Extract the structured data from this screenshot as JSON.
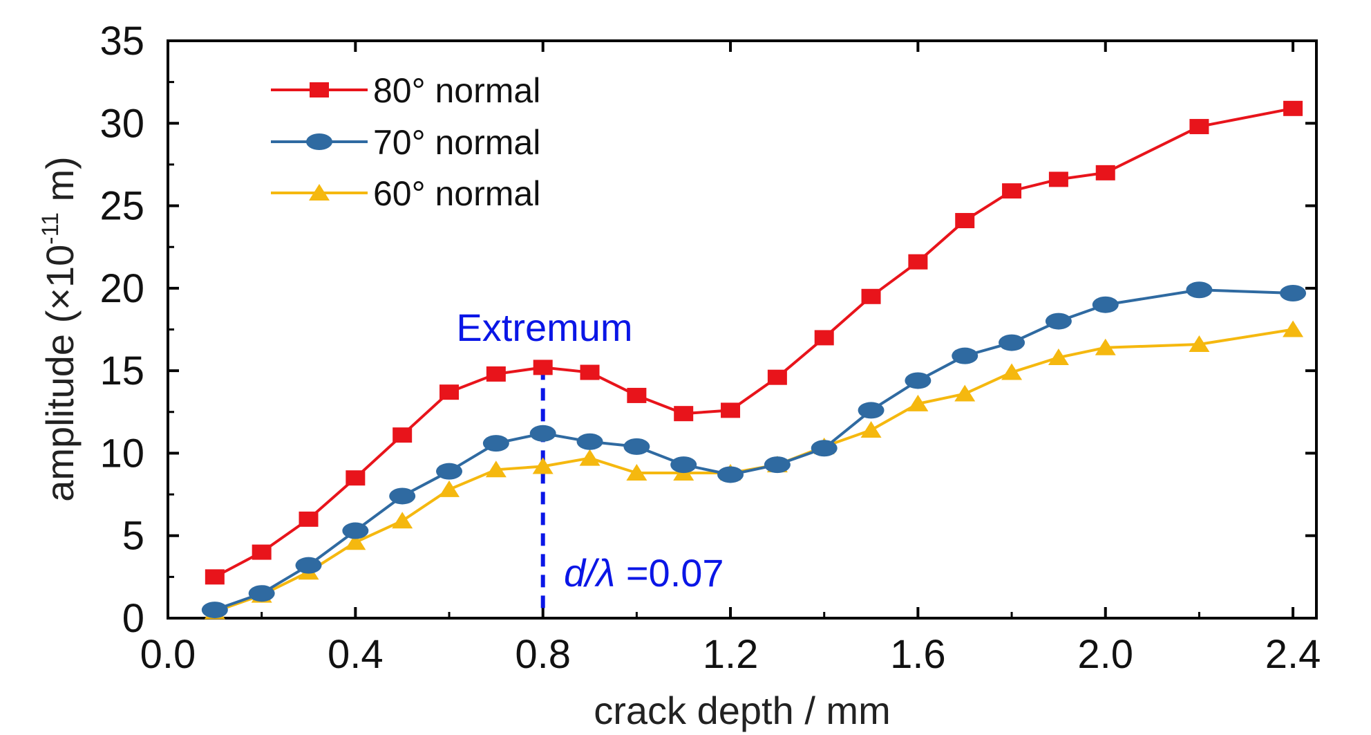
{
  "chart_data": {
    "type": "line",
    "xlabel": "crack depth / mm",
    "ylabel_prefix": "amplitude (×10",
    "ylabel_exponent": "-11",
    "ylabel_suffix": " m)",
    "xlim": [
      0.0,
      2.45
    ],
    "ylim": [
      0,
      35
    ],
    "x_ticks": [
      0.0,
      0.4,
      0.8,
      1.2,
      1.6,
      2.0,
      2.4
    ],
    "x_tick_labels": [
      "0.0",
      "0.4",
      "0.8",
      "1.2",
      "1.6",
      "2.0",
      "2.4"
    ],
    "y_ticks": [
      0,
      5,
      10,
      15,
      20,
      25,
      30,
      35
    ],
    "y_tick_labels": [
      "0",
      "5",
      "10",
      "15",
      "20",
      "25",
      "30",
      "35"
    ],
    "legend_position": "top-left",
    "grid": false,
    "series": [
      {
        "name": "80° normal",
        "color": "#e8141b",
        "marker": "square",
        "x": [
          0.1,
          0.2,
          0.3,
          0.4,
          0.5,
          0.6,
          0.7,
          0.8,
          0.9,
          1.0,
          1.1,
          1.2,
          1.3,
          1.4,
          1.5,
          1.6,
          1.7,
          1.8,
          1.9,
          2.0,
          2.2,
          2.4
        ],
        "y": [
          2.5,
          4.0,
          6.0,
          8.5,
          11.1,
          13.7,
          14.8,
          15.2,
          14.9,
          13.5,
          12.4,
          12.6,
          14.6,
          17.0,
          19.5,
          21.6,
          24.1,
          25.9,
          26.6,
          27.0,
          29.8,
          30.9
        ]
      },
      {
        "name": "70° normal",
        "color": "#2f6aa1",
        "marker": "ellipse",
        "x": [
          0.1,
          0.2,
          0.3,
          0.4,
          0.5,
          0.6,
          0.7,
          0.8,
          0.9,
          1.0,
          1.1,
          1.2,
          1.3,
          1.4,
          1.5,
          1.6,
          1.7,
          1.8,
          1.9,
          2.0,
          2.2,
          2.4
        ],
        "y": [
          0.5,
          1.5,
          3.2,
          5.3,
          7.4,
          8.9,
          10.6,
          11.2,
          10.7,
          10.4,
          9.3,
          8.7,
          9.3,
          10.3,
          12.6,
          14.4,
          15.9,
          16.7,
          18.0,
          19.0,
          19.9,
          19.7
        ]
      },
      {
        "name": "60° normal",
        "color": "#f5b80f",
        "marker": "triangle",
        "x": [
          0.1,
          0.2,
          0.3,
          0.4,
          0.5,
          0.6,
          0.7,
          0.8,
          0.9,
          1.0,
          1.1,
          1.2,
          1.3,
          1.4,
          1.5,
          1.6,
          1.7,
          1.8,
          1.9,
          2.0,
          2.2,
          2.4
        ],
        "y": [
          0.4,
          1.4,
          2.8,
          4.6,
          5.9,
          7.8,
          9.0,
          9.2,
          9.7,
          8.8,
          8.8,
          8.8,
          9.3,
          10.4,
          11.4,
          13.0,
          13.6,
          14.9,
          15.8,
          16.4,
          16.6,
          17.5
        ]
      }
    ],
    "annotations": {
      "extremum_label": "Extremum",
      "extremum_x": 0.8,
      "extremum_y_top": 15.2,
      "ratio_symbol_d": "d",
      "ratio_symbol_slash": "/",
      "ratio_symbol_lambda": "λ",
      "ratio_value": " =0.07",
      "line_color": "#0a16e6"
    }
  }
}
